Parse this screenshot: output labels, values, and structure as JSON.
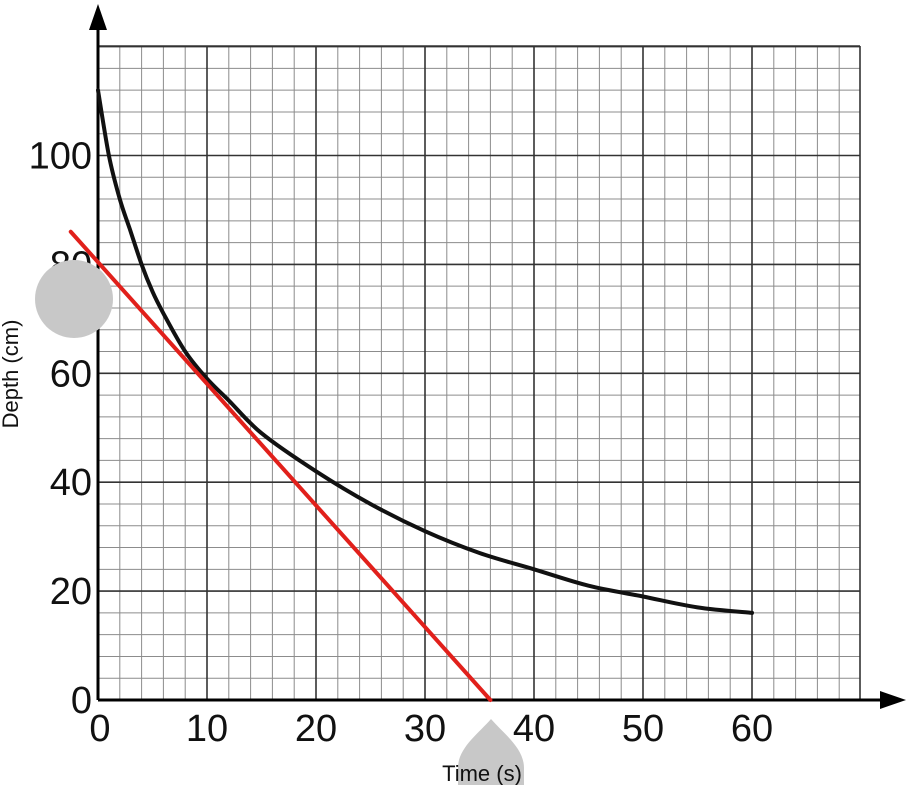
{
  "chart_data": {
    "type": "line",
    "title": "",
    "xlabel": "Time (s)",
    "ylabel": "Depth (cm)",
    "xlim": [
      0,
      70
    ],
    "ylim": [
      0,
      120
    ],
    "grid": true,
    "minor_grid_x_step": 2,
    "minor_grid_y_step": 4,
    "x_ticks": [
      0,
      10,
      20,
      30,
      40,
      50,
      60
    ],
    "x_tick_labels": [
      "0",
      "10",
      "20",
      "30",
      "40",
      "50",
      "60"
    ],
    "y_ticks": [
      0,
      20,
      40,
      60,
      80,
      100
    ],
    "y_tick_labels": [
      "0",
      "20",
      "40",
      "60",
      "80",
      "100"
    ],
    "series": [
      {
        "color": "#111111",
        "style": "curve",
        "x": [
          0,
          1,
          2,
          3,
          4,
          5,
          6,
          8,
          10,
          12,
          15,
          20,
          25,
          30,
          35,
          40,
          45,
          50,
          55,
          60
        ],
        "y": [
          112,
          100,
          92,
          86,
          80,
          75,
          71,
          64,
          59,
          55,
          49,
          42,
          36,
          31,
          27,
          24,
          21,
          19,
          17,
          16
        ]
      },
      {
        "color": "#e1201b",
        "style": "tangent",
        "x": [
          -2.5,
          36
        ],
        "y": [
          86,
          0
        ]
      }
    ]
  },
  "colors": {
    "grid_major": "#333333",
    "grid_minor": "#8c8c8c",
    "axis": "#000000",
    "marker": "#c8c8c8"
  },
  "decorations": [
    "grey-circle-marker",
    "grey-teardrop-marker"
  ]
}
